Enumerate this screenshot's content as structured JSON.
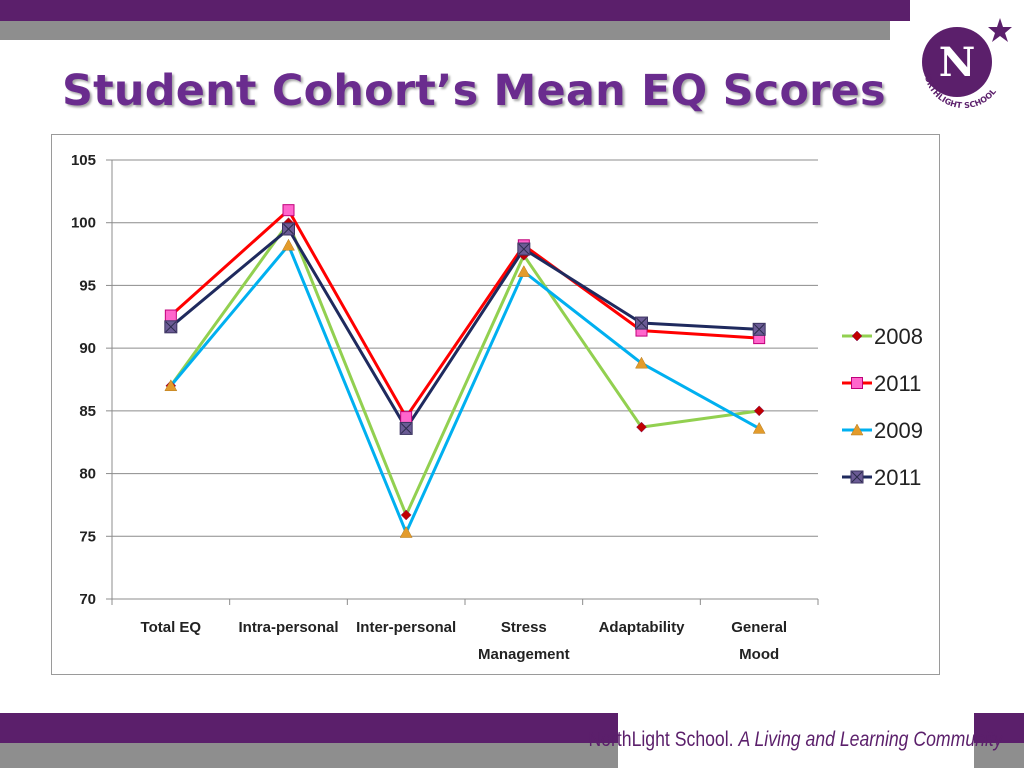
{
  "slide": {
    "title": "Student Cohort’s Mean EQ Scores",
    "logo_text": "NORTHLIGHT SCHOOL",
    "tagline_name": "NorthLight School.",
    "tagline_motto": "A Living and Learning Community"
  },
  "colors": {
    "brand_purple": "#5b1f6b",
    "title_purple": "#6a2c8e",
    "band_gray": "#8e8e8e"
  },
  "chart_data": {
    "type": "line",
    "title": "",
    "xlabel": "",
    "ylabel": "",
    "categories": [
      [
        "Total EQ"
      ],
      [
        "Intra-personal"
      ],
      [
        "Inter-personal"
      ],
      [
        "Stress",
        "Management"
      ],
      [
        "Adaptability"
      ],
      [
        "General",
        "Mood"
      ]
    ],
    "ylim": [
      70,
      105
    ],
    "yticks": [
      70,
      75,
      80,
      85,
      90,
      95,
      100,
      105
    ],
    "grid": true,
    "legend_position": "right",
    "series": [
      {
        "name": "2008",
        "values": [
          87.0,
          100.0,
          76.7,
          97.4,
          83.7,
          85.0
        ],
        "color": "#92d050",
        "marker": "diamond",
        "marker_color": "#c00000"
      },
      {
        "name": "2011",
        "values": [
          92.6,
          101.0,
          84.5,
          98.2,
          91.4,
          90.8
        ],
        "color": "#ff0000",
        "marker": "square",
        "marker_color": "#ff66cc"
      },
      {
        "name": "2009",
        "values": [
          87.0,
          98.2,
          75.3,
          96.1,
          88.8,
          83.6
        ],
        "color": "#00b0f0",
        "marker": "triangle",
        "marker_color": "#e39b2b"
      },
      {
        "name": "2011",
        "values": [
          91.7,
          99.5,
          83.6,
          97.9,
          92.0,
          91.5
        ],
        "color": "#1f2a5e",
        "marker": "xsquare",
        "marker_color": "#6b5b95"
      }
    ]
  }
}
